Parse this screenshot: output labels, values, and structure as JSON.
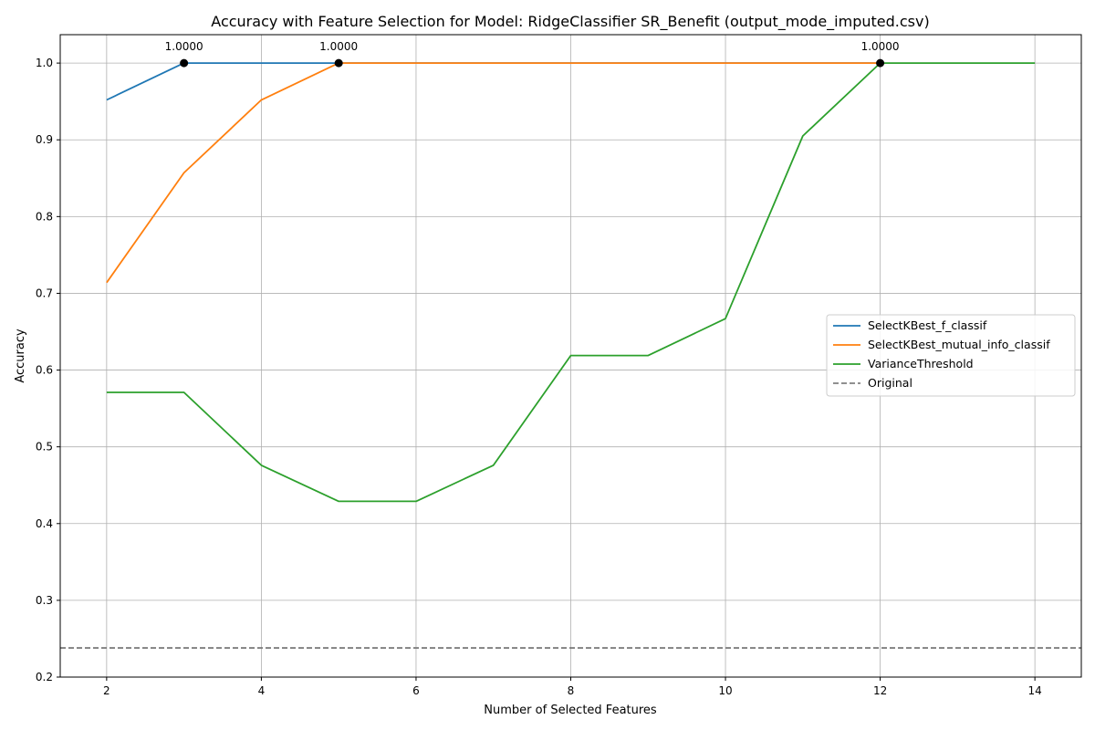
{
  "chart_data": {
    "type": "line",
    "title": "Accuracy with Feature Selection for Model: RidgeClassifier SR_Benefit (output_mode_imputed.csv)",
    "xlabel": "Number of Selected Features",
    "ylabel": "Accuracy",
    "xlim": [
      1.4,
      14.6
    ],
    "ylim": [
      0.2,
      1.037
    ],
    "xticks": [
      2,
      4,
      6,
      8,
      10,
      12,
      14
    ],
    "yticks": [
      0.2,
      0.3,
      0.4,
      0.5,
      0.6,
      0.7,
      0.8,
      0.9,
      1.0
    ],
    "grid": true,
    "legend_position": "center-right",
    "series": [
      {
        "name": "SelectKBest_f_classif",
        "color": "#1f77b4",
        "x": [
          2,
          3,
          4,
          5,
          6,
          7,
          8,
          9,
          10,
          11,
          12
        ],
        "y": [
          0.952,
          1.0,
          1.0,
          1.0,
          1.0,
          1.0,
          1.0,
          1.0,
          1.0,
          1.0,
          1.0
        ],
        "best": {
          "x": 3,
          "y": 1.0,
          "label": "1.0000"
        }
      },
      {
        "name": "SelectKBest_mutual_info_classif",
        "color": "#ff7f0e",
        "x": [
          2,
          3,
          4,
          5,
          6,
          7,
          8,
          9,
          10,
          11,
          12
        ],
        "y": [
          0.714,
          0.857,
          0.952,
          1.0,
          1.0,
          1.0,
          1.0,
          1.0,
          1.0,
          1.0,
          1.0
        ],
        "best": {
          "x": 5,
          "y": 1.0,
          "label": "1.0000"
        }
      },
      {
        "name": "VarianceThreshold",
        "color": "#2ca02c",
        "x": [
          2,
          3,
          4,
          5,
          6,
          7,
          8,
          9,
          10,
          11,
          12,
          13,
          14
        ],
        "y": [
          0.571,
          0.571,
          0.476,
          0.429,
          0.429,
          0.476,
          0.619,
          0.619,
          0.667,
          0.905,
          1.0,
          1.0,
          1.0
        ],
        "best": {
          "x": 12,
          "y": 1.0,
          "label": "1.0000"
        }
      }
    ],
    "reference_line": {
      "name": "Original",
      "color": "#808080",
      "y": 0.238,
      "style": "dashed"
    }
  }
}
